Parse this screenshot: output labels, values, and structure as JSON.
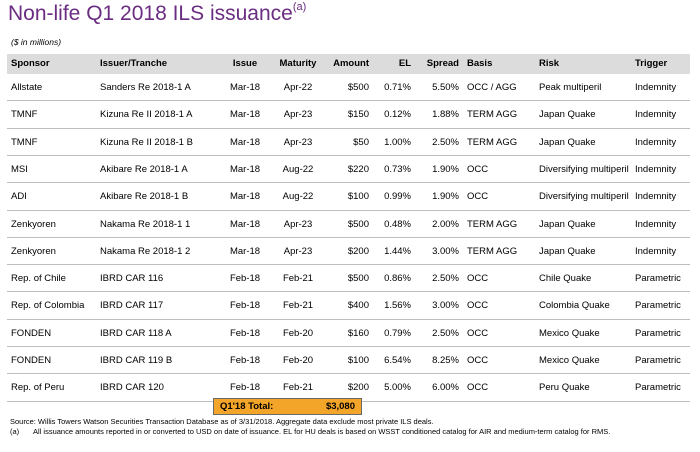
{
  "title": "Non-life Q1 2018 ILS issuance",
  "title_sup": "(a)",
  "subtitle": "($ in millions)",
  "headers": [
    "Sponsor",
    "Issuer/Tranche",
    "Issue",
    "Maturity",
    "Amount",
    "EL",
    "Spread",
    "Basis",
    "Risk",
    "Trigger"
  ],
  "rows": [
    [
      "Allstate",
      "Sanders Re 2018-1 A",
      "Mar-18",
      "Apr-22",
      "$500",
      "0.71%",
      "5.50%",
      "OCC / AGG",
      "Peak multiperil",
      "Indemnity"
    ],
    [
      "TMNF",
      "Kizuna Re II 2018-1 A",
      "Mar-18",
      "Apr-23",
      "$150",
      "0.12%",
      "1.88%",
      "TERM AGG",
      "Japan Quake",
      "Indemnity"
    ],
    [
      "TMNF",
      "Kizuna Re II 2018-1 B",
      "Mar-18",
      "Apr-23",
      "$50",
      "1.00%",
      "2.50%",
      "TERM AGG",
      "Japan Quake",
      "Indemnity"
    ],
    [
      "MSI",
      "Akibare Re 2018-1 A",
      "Mar-18",
      "Aug-22",
      "$220",
      "0.73%",
      "1.90%",
      "OCC",
      "Diversifying multiperil",
      "Indemnity"
    ],
    [
      "ADI",
      "Akibare Re 2018-1 B",
      "Mar-18",
      "Aug-22",
      "$100",
      "0.99%",
      "1.90%",
      "OCC",
      "Diversifying multiperil",
      "Indemnity"
    ],
    [
      "Zenkyoren",
      "Nakama Re 2018-1 1",
      "Mar-18",
      "Apr-23",
      "$500",
      "0.48%",
      "2.00%",
      "TERM AGG",
      "Japan Quake",
      "Indemnity"
    ],
    [
      "Zenkyoren",
      "Nakama Re 2018-1 2",
      "Mar-18",
      "Apr-23",
      "$200",
      "1.44%",
      "3.00%",
      "TERM AGG",
      "Japan Quake",
      "Indemnity"
    ],
    [
      "Rep. of Chile",
      "IBRD CAR 116",
      "Feb-18",
      "Feb-21",
      "$500",
      "0.86%",
      "2.50%",
      "OCC",
      "Chile Quake",
      "Parametric"
    ],
    [
      "Rep. of Colombia",
      "IBRD CAR 117",
      "Feb-18",
      "Feb-21",
      "$400",
      "1.56%",
      "3.00%",
      "OCC",
      "Colombia Quake",
      "Parametric"
    ],
    [
      "FONDEN",
      "IBRD CAR 118 A",
      "Feb-18",
      "Feb-20",
      "$160",
      "0.79%",
      "2.50%",
      "OCC",
      "Mexico Quake",
      "Parametric"
    ],
    [
      "FONDEN",
      "IBRD CAR 119 B",
      "Feb-18",
      "Feb-20",
      "$100",
      "6.54%",
      "8.25%",
      "OCC",
      "Mexico Quake",
      "Parametric"
    ],
    [
      "Rep. of Peru",
      "IBRD CAR 120",
      "Feb-18",
      "Feb-21",
      "$200",
      "5.00%",
      "6.00%",
      "OCC",
      "Peru Quake",
      "Parametric"
    ]
  ],
  "total": {
    "label": "Q1'18 Total:",
    "value": "$3,080"
  },
  "footnotes": {
    "source": "Source: Willis Towers Watson Securities Transaction Database as of 3/31/2018. Aggregate data exclude most private ILS deals.",
    "note_marker": "(a)",
    "note_text": "All issuance amounts reported in or converted to USD on date of issuance. EL for HU deals is based on WSST conditioned catalog for AIR and medium-term catalog for RMS."
  },
  "colors": {
    "title": "#6b2d82",
    "header_bg": "#dcdcdc",
    "total_bg": "#f3a52a"
  }
}
